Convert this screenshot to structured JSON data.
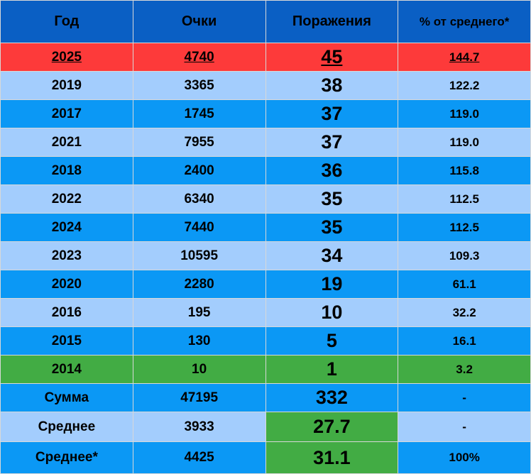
{
  "table": {
    "header": [
      "Год",
      "Очки",
      "Поражения",
      "% от среднего*"
    ],
    "rows": [
      [
        "2025",
        "4740",
        "45",
        "144.7"
      ],
      [
        "2019",
        "3365",
        "38",
        "122.2"
      ],
      [
        "2017",
        "1745",
        "37",
        "119.0"
      ],
      [
        "2021",
        "7955",
        "37",
        "119.0"
      ],
      [
        "2018",
        "2400",
        "36",
        "115.8"
      ],
      [
        "2022",
        "6340",
        "35",
        "112.5"
      ],
      [
        "2024",
        "7440",
        "35",
        "112.5"
      ],
      [
        "2023",
        "10595",
        "34",
        "109.3"
      ],
      [
        "2020",
        "2280",
        "19",
        "61.1"
      ],
      [
        "2016",
        "195",
        "10",
        "32.2"
      ],
      [
        "2015",
        "130",
        "5",
        "16.1"
      ],
      [
        "2014",
        "10",
        "1",
        "3.2"
      ],
      [
        "Сумма",
        "47195",
        "332",
        "-"
      ],
      [
        "Среднее",
        "3933",
        "27.7",
        "-"
      ],
      [
        "Среднее*",
        "4425",
        "31.1",
        "100%"
      ]
    ]
  }
}
